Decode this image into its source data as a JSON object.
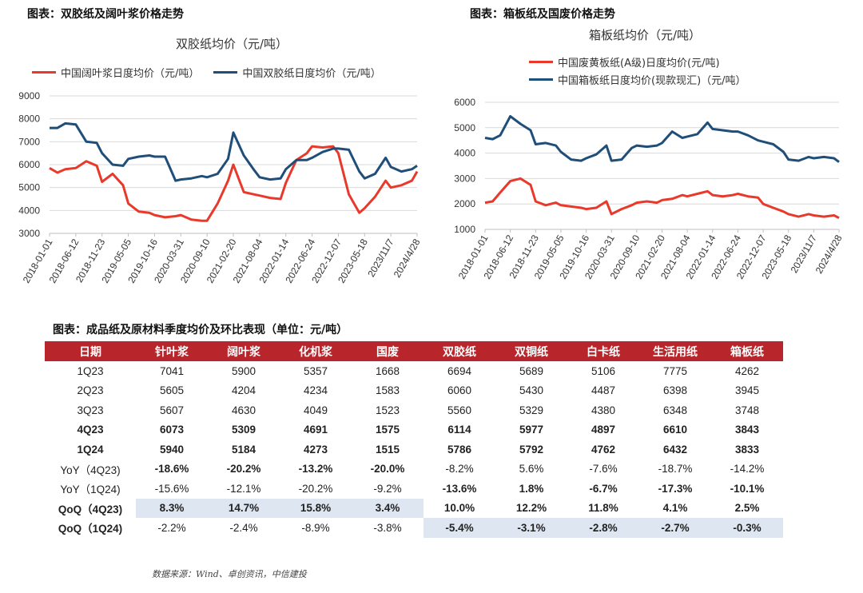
{
  "left_figure": {
    "heading": "图表：双胶纸及阔叶浆价格走势"
  },
  "right_figure": {
    "heading": "图表：箱板纸及国废价格走势"
  },
  "chart_data": [
    {
      "type": "line",
      "title": "双胶纸均价（元/吨）",
      "ylim": [
        3000,
        9000
      ],
      "yticks": [
        3000,
        4000,
        5000,
        6000,
        7000,
        8000,
        9000
      ],
      "xticks": [
        "2018-01-01",
        "2018-06-12",
        "2018-11-23",
        "2019-05-05",
        "2019-10-16",
        "2020-03-31",
        "2020-09-10",
        "2021-02-20",
        "2021-08-04",
        "2022-01-14",
        "2022-06-24",
        "2022-12-07",
        "2023-05-18",
        "2023/11/7",
        "2024/4/28"
      ],
      "legend_position": "top",
      "grid": true,
      "x": [
        0,
        0.3,
        0.6,
        1,
        1.4,
        1.8,
        2,
        2.4,
        2.8,
        3,
        3.4,
        3.8,
        4,
        4.4,
        4.8,
        5,
        5.4,
        5.8,
        6,
        6.4,
        6.8,
        7,
        7.4,
        7.8,
        8,
        8.4,
        8.8,
        9,
        9.4,
        9.8,
        10,
        10.4,
        10.8,
        11,
        11.4,
        11.8,
        12,
        12.4,
        12.8,
        13,
        13.4,
        13.8,
        14
      ],
      "series": [
        {
          "name": "中国阔叶浆日度均价（元/吨）",
          "color": "#e8392b",
          "values": [
            5850,
            5650,
            5800,
            5850,
            6150,
            5950,
            5250,
            5600,
            5100,
            4300,
            3950,
            3900,
            3800,
            3700,
            3750,
            3800,
            3600,
            3550,
            3550,
            4300,
            5300,
            6000,
            4800,
            4700,
            4650,
            4550,
            4500,
            5200,
            6200,
            6500,
            6800,
            6750,
            6800,
            6500,
            4700,
            3900,
            4100,
            4600,
            5300,
            5000,
            5100,
            5300,
            5700
          ]
        },
        {
          "name": "中国双胶纸日度均价（元/吨）",
          "color": "#1f4e79",
          "values": [
            7600,
            7600,
            7800,
            7750,
            7000,
            6950,
            6500,
            6000,
            5950,
            6250,
            6350,
            6400,
            6350,
            6350,
            5300,
            5350,
            5400,
            5500,
            5450,
            5600,
            6250,
            7400,
            6400,
            5750,
            5450,
            5350,
            5400,
            5800,
            6200,
            6200,
            6300,
            6550,
            6700,
            6700,
            6650,
            5700,
            5400,
            5600,
            6300,
            5900,
            5700,
            5800,
            5950
          ]
        }
      ]
    },
    {
      "type": "line",
      "title": "箱板纸均价（元/吨）",
      "ylim": [
        1000,
        6000
      ],
      "yticks": [
        1000,
        2000,
        3000,
        4000,
        5000,
        6000
      ],
      "xticks": [
        "2018-01-01",
        "2018-06-12",
        "2018-11-23",
        "2019-05-05",
        "2019-10-16",
        "2020-03-31",
        "2020-09-10",
        "2021-02-20",
        "2021-08-04",
        "2022-01-14",
        "2022-06-24",
        "2022-12-07",
        "2023-05-18",
        "2023/11/7",
        "2024/4/28"
      ],
      "legend_position": "top",
      "grid": true,
      "x": [
        0,
        0.3,
        0.6,
        1,
        1.4,
        1.8,
        2,
        2.4,
        2.8,
        3,
        3.4,
        3.8,
        4,
        4.4,
        4.8,
        5,
        5.4,
        5.8,
        6,
        6.4,
        6.8,
        7,
        7.4,
        7.8,
        8,
        8.4,
        8.8,
        9,
        9.4,
        9.8,
        10,
        10.4,
        10.8,
        11,
        11.4,
        11.8,
        12,
        12.4,
        12.8,
        13,
        13.4,
        13.8,
        14
      ],
      "series": [
        {
          "name": "中国废黄板纸(A级)日度均价(元/吨)",
          "color": "#e8392b",
          "values": [
            2050,
            2100,
            2450,
            2900,
            3000,
            2750,
            2100,
            1950,
            2050,
            1950,
            1900,
            1850,
            1800,
            1850,
            2100,
            1600,
            1800,
            1950,
            2050,
            2100,
            2050,
            2150,
            2200,
            2350,
            2300,
            2400,
            2500,
            2350,
            2300,
            2350,
            2400,
            2300,
            2250,
            2000,
            1850,
            1700,
            1600,
            1500,
            1600,
            1550,
            1500,
            1550,
            1450
          ]
        },
        {
          "name": "中国箱板纸日度均价(现款现汇)（元/吨）",
          "color": "#1f4e79",
          "values": [
            4600,
            4550,
            4700,
            5450,
            5150,
            4900,
            4350,
            4400,
            4300,
            4050,
            3750,
            3700,
            3800,
            3950,
            4300,
            3700,
            3750,
            4200,
            4300,
            4250,
            4300,
            4400,
            4850,
            4600,
            4650,
            4750,
            5200,
            4950,
            4900,
            4850,
            4850,
            4700,
            4500,
            4450,
            4350,
            4050,
            3750,
            3700,
            3850,
            3800,
            3850,
            3800,
            3650
          ]
        }
      ]
    }
  ],
  "table": {
    "title": "图表：成品纸及原材料季度均价及环比表现（单位：元/吨）",
    "headers": [
      "日期",
      "针叶浆",
      "阔叶浆",
      "化机浆",
      "国废",
      "双胶纸",
      "双铜纸",
      "白卡纸",
      "生活用纸",
      "箱板纸"
    ],
    "rows": [
      {
        "cells": [
          "1Q23",
          "7041",
          "5900",
          "5357",
          "1668",
          "6694",
          "5689",
          "5106",
          "7775",
          "4262"
        ]
      },
      {
        "cells": [
          "2Q23",
          "5605",
          "4204",
          "4234",
          "1583",
          "6060",
          "5430",
          "4487",
          "6398",
          "3945"
        ]
      },
      {
        "cells": [
          "3Q23",
          "5607",
          "4630",
          "4049",
          "1523",
          "5560",
          "5329",
          "4380",
          "6348",
          "3748"
        ]
      },
      {
        "cells": [
          "4Q23",
          "6073",
          "5309",
          "4691",
          "1575",
          "6114",
          "5977",
          "4897",
          "6610",
          "3843"
        ]
      },
      {
        "cells": [
          "1Q24",
          "5940",
          "5184",
          "4273",
          "1515",
          "5786",
          "5792",
          "4762",
          "6432",
          "3833"
        ]
      },
      {
        "cells": [
          "YoY（4Q23)",
          "-18.6%",
          "-20.2%",
          "-13.2%",
          "-20.0%",
          "-8.2%",
          "5.6%",
          "-7.6%",
          "-18.7%",
          "-14.2%"
        ]
      },
      {
        "cells": [
          "YoY（1Q24)",
          "-15.6%",
          "-12.1%",
          "-20.2%",
          "-9.2%",
          "-13.6%",
          "1.8%",
          "-6.7%",
          "-17.3%",
          "-10.1%"
        ]
      },
      {
        "cells": [
          "QoQ（4Q23)",
          "8.3%",
          "14.7%",
          "15.8%",
          "3.4%",
          "10.0%",
          "12.2%",
          "11.8%",
          "4.1%",
          "2.5%"
        ]
      },
      {
        "cells": [
          "QoQ（1Q24)",
          "-2.2%",
          "-2.4%",
          "-8.9%",
          "-3.8%",
          "-5.4%",
          "-3.1%",
          "-2.8%",
          "-2.7%",
          "-0.3%"
        ]
      }
    ]
  },
  "source": "数据来源：Wind、卓创资讯，中信建投"
}
